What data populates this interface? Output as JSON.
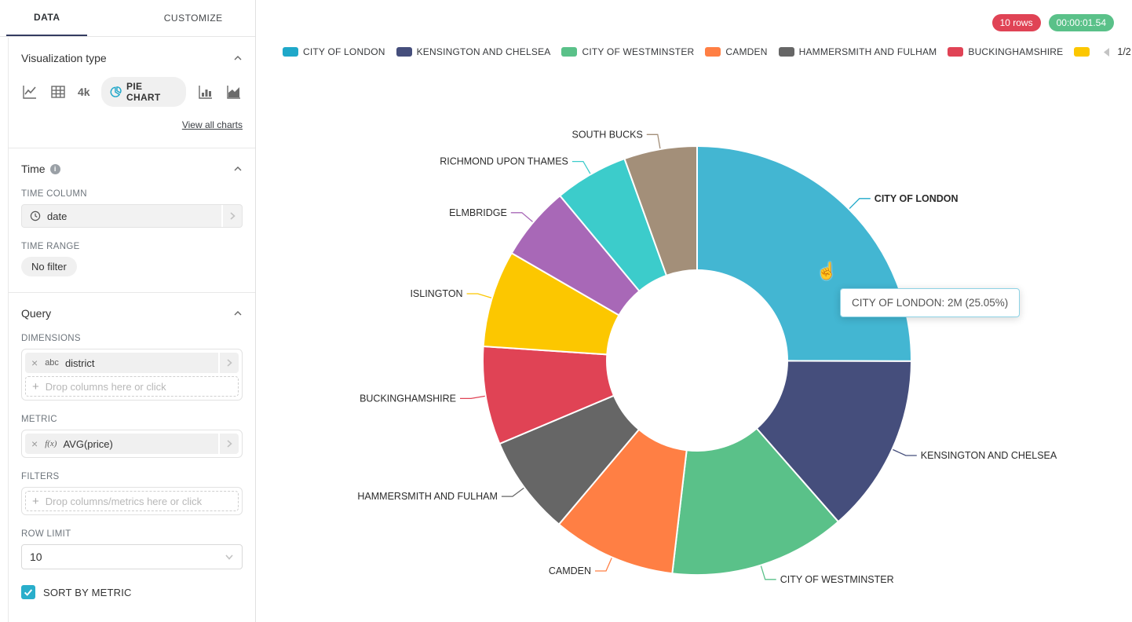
{
  "colors": {
    "accent": "#20A7C9",
    "tab_ink": "#343b60",
    "rows_badge": "#E04355",
    "timer_badge": "#5AC189",
    "checkbox": "#29AECB"
  },
  "sidebar": {
    "tabs": [
      {
        "label": "DATA"
      },
      {
        "label": "CUSTOMIZE"
      }
    ],
    "viz_section": {
      "title": "Visualization type",
      "big_number_icon_label": "4k",
      "selected_chart_label": "PIE CHART",
      "view_all_label": "View all charts"
    },
    "time_section": {
      "title": "Time",
      "time_column_label": "TIME COLUMN",
      "time_column_value": "date",
      "time_range_label": "TIME RANGE",
      "time_range_value": "No filter"
    },
    "query_section": {
      "title": "Query",
      "dimensions_label": "DIMENSIONS",
      "dimension_chip": {
        "type_tag": "abc",
        "name": "district"
      },
      "dimensions_placeholder": "Drop columns here or click",
      "metric_label": "METRIC",
      "metric_chip": {
        "type_tag": "f(x)",
        "name": "AVG(price)"
      },
      "filters_label": "FILTERS",
      "filters_placeholder": "Drop columns/metrics here or click",
      "row_limit_label": "ROW LIMIT",
      "row_limit_value": "10",
      "sort_by_metric_label": "SORT BY METRIC",
      "sort_by_metric_checked": true
    }
  },
  "header": {
    "rows_badge": "10 rows",
    "timer_badge": "00:00:01.54"
  },
  "legend": {
    "page": "1/2",
    "items": [
      {
        "label": "CITY OF LONDON",
        "color": "#1FA8C9"
      },
      {
        "label": "KENSINGTON AND CHELSEA",
        "color": "#454E7C"
      },
      {
        "label": "CITY OF WESTMINSTER",
        "color": "#5AC189"
      },
      {
        "label": "CAMDEN",
        "color": "#FF7F44"
      },
      {
        "label": "HAMMERSMITH AND FULHAM",
        "color": "#666666"
      },
      {
        "label": "BUCKINGHAMSHIRE",
        "color": "#E04355"
      },
      {
        "label": "",
        "color": "#FCC700",
        "truncated": true
      }
    ]
  },
  "chart_data": {
    "type": "pie",
    "donut": true,
    "dimension": "district",
    "metric": "AVG(price)",
    "legend_position": "top",
    "slices": [
      {
        "name": "CITY OF LONDON",
        "percent": 25.05,
        "value_label": "2M",
        "color": "#1FA8C9",
        "hovered": true
      },
      {
        "name": "KENSINGTON AND CHELSEA",
        "percent": 13.5,
        "color": "#454E7C"
      },
      {
        "name": "CITY OF WESTMINSTER",
        "percent": 13.3,
        "color": "#5AC189"
      },
      {
        "name": "CAMDEN",
        "percent": 9.3,
        "color": "#FF7F44"
      },
      {
        "name": "HAMMERSMITH AND FULHAM",
        "percent": 7.5,
        "color": "#666666"
      },
      {
        "name": "BUCKINGHAMSHIRE",
        "percent": 7.4,
        "color": "#E04355"
      },
      {
        "name": "ISLINGTON",
        "percent": 7.3,
        "color": "#FCC700"
      },
      {
        "name": "ELMBRIDGE",
        "percent": 5.6,
        "color": "#A868B7"
      },
      {
        "name": "RICHMOND UPON THAMES",
        "percent": 5.55,
        "color": "#3CCCCB"
      },
      {
        "name": "SOUTH BUCKS",
        "percent": 5.5,
        "color": "#A38F79"
      }
    ]
  },
  "tooltip": {
    "text": "CITY OF LONDON: 2M (25.05%)"
  }
}
